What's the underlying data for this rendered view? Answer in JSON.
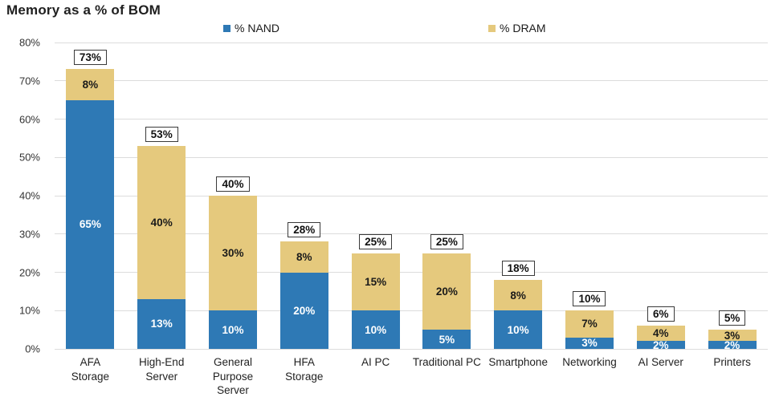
{
  "chart_data": {
    "type": "bar",
    "stacked": true,
    "title": "Memory as a % of BOM",
    "xlabel": "",
    "ylabel": "",
    "ylim": [
      0,
      80
    ],
    "grid": true,
    "legend_position": "top",
    "y_ticks": [
      "80%",
      "70%",
      "60%",
      "50%",
      "40%",
      "30%",
      "20%",
      "10%",
      "0%"
    ],
    "categories": [
      "AFA Storage",
      "High-End Server",
      "General Purpose Server",
      "HFA Storage",
      "AI PC",
      "Traditional PC",
      "Smartphone",
      "Networking",
      "AI Server",
      "Printers"
    ],
    "category_lines": [
      [
        "AFA",
        "Storage"
      ],
      [
        "High-End",
        "Server"
      ],
      [
        "General",
        "Purpose",
        "Server"
      ],
      [
        "HFA",
        "Storage"
      ],
      [
        "AI PC"
      ],
      [
        "Traditional PC"
      ],
      [
        "Smartphone"
      ],
      [
        "Networking"
      ],
      [
        "AI Server"
      ],
      [
        "Printers"
      ]
    ],
    "series": [
      {
        "name": "% NAND",
        "color": "#2E79B5",
        "label_color": "#FFFFFF",
        "values": [
          65,
          13,
          10,
          20,
          10,
          5,
          10,
          3,
          2,
          2
        ]
      },
      {
        "name": "% DRAM",
        "color": "#E5C97D",
        "label_color": "#1A1A1A",
        "values": [
          8,
          40,
          30,
          8,
          15,
          20,
          8,
          7,
          4,
          3
        ]
      }
    ],
    "segment_labels": {
      "nand": [
        "65%",
        "13%",
        "10%",
        "20%",
        "10%",
        "5%",
        "10%",
        "3%",
        "2%",
        "2%"
      ],
      "dram": [
        "8%",
        "40%",
        "30%",
        "8%",
        "15%",
        "20%",
        "8%",
        "7%",
        "4%",
        "3%"
      ]
    },
    "totals": [
      "73%",
      "53%",
      "40%",
      "28%",
      "25%",
      "25%",
      "18%",
      "10%",
      "6%",
      "5%"
    ],
    "colors": {
      "nand_blue": "#2E79B5",
      "dram_tan": "#E5C97D",
      "gridline": "#DCDCDC",
      "total_box_border": "#3A3A3A",
      "text_dark": "#1F1F1F"
    }
  }
}
